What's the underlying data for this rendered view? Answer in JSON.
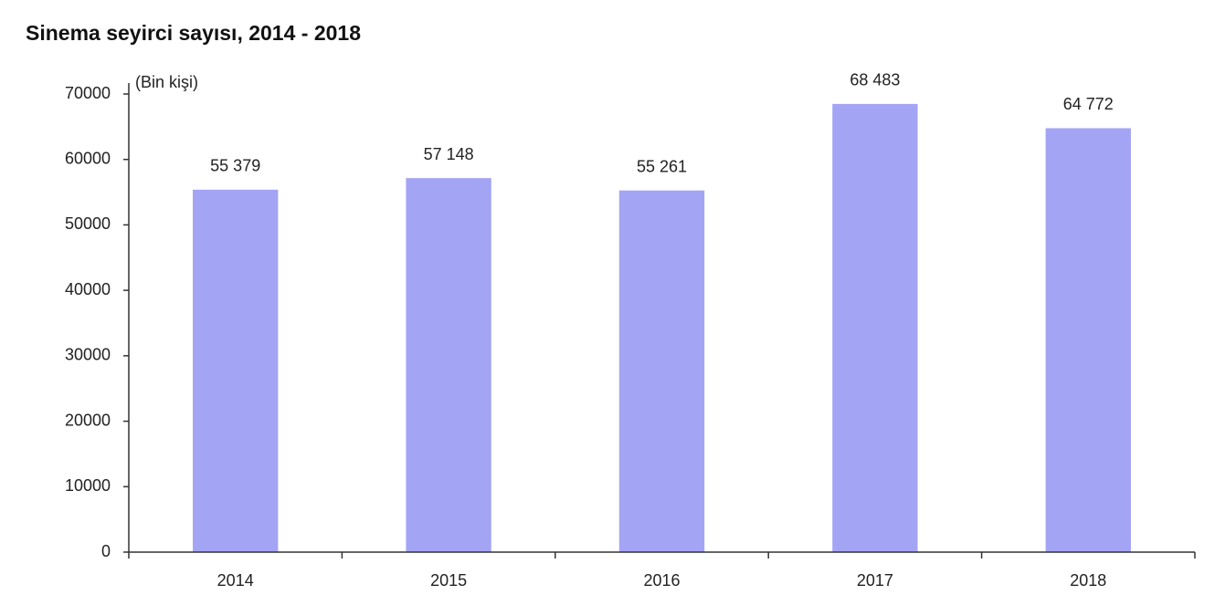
{
  "chart_data": {
    "type": "bar",
    "title": "Sinema seyirci sayısı, 2014 - 2018",
    "y_label": "(Bin kişi)",
    "categories": [
      "2014",
      "2015",
      "2016",
      "2017",
      "2018"
    ],
    "values": [
      55379,
      57148,
      55261,
      68483,
      64772
    ],
    "value_labels": [
      "55 379",
      "57 148",
      "55 261",
      "68 483",
      "64 772"
    ],
    "color": "#a4a4f4",
    "ylim": [
      0,
      70000
    ],
    "yticks": [
      0,
      10000,
      20000,
      30000,
      40000,
      50000,
      60000,
      70000
    ],
    "grid": false
  }
}
